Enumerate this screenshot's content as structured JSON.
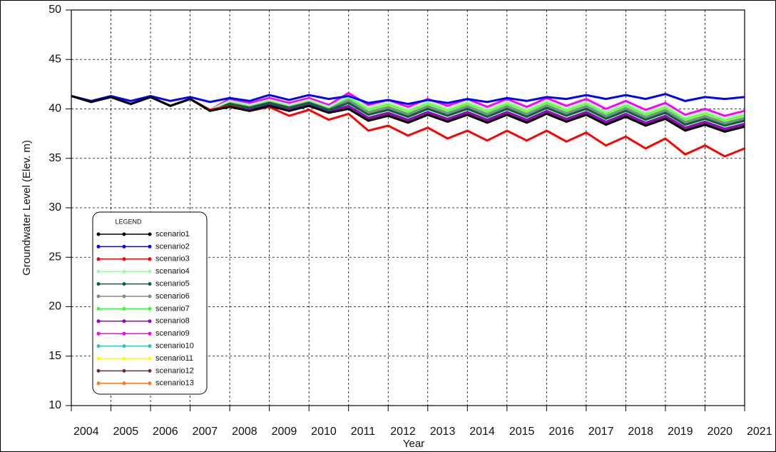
{
  "chart_data": {
    "type": "line",
    "x_label": "Year",
    "y_label": "Groundwater Level (Elev. m)",
    "legend_title": "LEGEND",
    "grid": true,
    "legend_position": "lower left",
    "xlim": [
      2004,
      2021
    ],
    "xticks": [
      2004,
      2005,
      2006,
      2007,
      2008,
      2009,
      2010,
      2011,
      2012,
      2013,
      2014,
      2015,
      2016,
      2017,
      2018,
      2019,
      2020,
      2021
    ],
    "ylim": [
      10,
      50
    ],
    "yticks": [
      10,
      15,
      20,
      25,
      30,
      35,
      40,
      45,
      50
    ],
    "x": [
      2004,
      2004.5,
      2005,
      2005.5,
      2006,
      2006.5,
      2007,
      2007.5,
      2008,
      2008.5,
      2009,
      2009.5,
      2010,
      2010.5,
      2011,
      2011.5,
      2012,
      2012.5,
      2013,
      2013.5,
      2014,
      2014.5,
      2015,
      2015.5,
      2016,
      2016.5,
      2017,
      2017.5,
      2018,
      2018.5,
      2019,
      2019.5,
      2020,
      2020.5,
      2021
    ],
    "series": [
      {
        "name": "scenario1",
        "color": "#000000",
        "values": [
          41.3,
          40.7,
          41.2,
          40.5,
          41.2,
          40.3,
          41.0,
          39.8,
          40.2,
          39.8,
          40.3,
          39.8,
          40.3,
          39.6,
          40.0,
          38.8,
          39.3,
          38.6,
          39.4,
          38.7,
          39.4,
          38.6,
          39.4,
          38.6,
          39.5,
          38.7,
          39.4,
          38.4,
          39.2,
          38.3,
          39.0,
          37.8,
          38.4,
          37.7,
          38.2
        ]
      },
      {
        "name": "scenario2",
        "color": "#0000ff",
        "values": [
          41.3,
          40.8,
          41.3,
          40.8,
          41.3,
          40.8,
          41.2,
          40.7,
          41.1,
          40.8,
          41.4,
          40.9,
          41.4,
          41.0,
          41.3,
          40.6,
          40.9,
          40.5,
          40.9,
          40.6,
          41.0,
          40.7,
          41.1,
          40.8,
          41.2,
          41.0,
          41.4,
          41.0,
          41.4,
          41.0,
          41.5,
          40.8,
          41.2,
          41.0,
          41.2
        ]
      },
      {
        "name": "scenario3",
        "color": "#ff0000",
        "values": [
          41.3,
          40.7,
          41.2,
          40.5,
          41.2,
          40.3,
          41.0,
          39.9,
          40.3,
          39.8,
          40.2,
          39.3,
          39.9,
          38.9,
          39.5,
          37.8,
          38.3,
          37.3,
          38.1,
          37.0,
          37.8,
          36.8,
          37.8,
          36.8,
          37.8,
          36.7,
          37.6,
          36.3,
          37.2,
          36.0,
          37.0,
          35.4,
          36.3,
          35.2,
          36.0
        ]
      },
      {
        "name": "scenario4",
        "color": "#99ff99",
        "values": [
          41.3,
          40.7,
          41.2,
          40.5,
          41.2,
          40.3,
          41.0,
          39.9,
          40.8,
          40.4,
          40.9,
          40.4,
          40.9,
          40.2,
          41.3,
          40.1,
          40.6,
          39.9,
          40.7,
          40.0,
          40.7,
          39.9,
          40.7,
          39.9,
          40.8,
          40.0,
          40.7,
          39.7,
          40.5,
          39.6,
          40.3,
          39.1,
          39.7,
          39.0,
          39.5
        ]
      },
      {
        "name": "scenario5",
        "color": "#006633",
        "values": [
          41.3,
          40.7,
          41.2,
          40.5,
          41.2,
          40.3,
          41.0,
          39.9,
          40.5,
          40.1,
          40.6,
          40.1,
          40.6,
          39.9,
          40.6,
          39.4,
          39.9,
          39.2,
          40.0,
          39.3,
          40.0,
          39.2,
          40.0,
          39.2,
          40.1,
          39.3,
          40.0,
          39.0,
          39.8,
          38.9,
          39.6,
          38.4,
          39.0,
          38.3,
          38.8
        ]
      },
      {
        "name": "scenario6",
        "color": "#888888",
        "values": [
          41.3,
          40.7,
          41.2,
          40.5,
          41.2,
          40.3,
          41.0,
          39.9,
          40.6,
          40.2,
          40.7,
          40.2,
          40.7,
          40.0,
          40.8,
          39.6,
          40.1,
          39.4,
          40.2,
          39.5,
          40.2,
          39.4,
          40.2,
          39.4,
          40.3,
          39.5,
          40.2,
          39.2,
          40.0,
          39.1,
          39.8,
          38.6,
          39.2,
          38.5,
          39.0
        ]
      },
      {
        "name": "scenario7",
        "color": "#33ff33",
        "values": [
          41.3,
          40.7,
          41.2,
          40.5,
          41.2,
          40.3,
          41.0,
          39.9,
          40.8,
          40.4,
          40.9,
          40.4,
          40.9,
          40.2,
          41.2,
          40.0,
          40.5,
          39.8,
          40.6,
          39.9,
          40.6,
          39.8,
          40.6,
          39.8,
          40.7,
          39.9,
          40.6,
          39.6,
          40.4,
          39.5,
          40.2,
          39.0,
          39.6,
          38.9,
          39.4
        ]
      },
      {
        "name": "scenario8",
        "color": "#9900cc",
        "values": [
          41.3,
          40.7,
          41.2,
          40.5,
          41.2,
          40.3,
          41.0,
          39.9,
          40.4,
          40.0,
          40.5,
          40.0,
          40.5,
          39.8,
          40.3,
          39.1,
          39.6,
          38.9,
          39.7,
          39.0,
          39.7,
          38.9,
          39.7,
          38.9,
          39.8,
          39.0,
          39.7,
          38.7,
          39.5,
          38.6,
          39.3,
          38.1,
          38.7,
          38.0,
          38.5
        ]
      },
      {
        "name": "scenario9",
        "color": "#ff00ff",
        "values": [
          41.3,
          40.7,
          41.2,
          40.5,
          41.2,
          40.3,
          41.0,
          39.9,
          41.0,
          40.6,
          41.1,
          40.6,
          41.1,
          40.4,
          41.6,
          40.4,
          40.9,
          40.2,
          41.0,
          40.3,
          41.0,
          40.2,
          41.0,
          40.2,
          41.1,
          40.3,
          41.0,
          40.0,
          40.8,
          39.9,
          40.6,
          39.4,
          40.0,
          39.3,
          39.8
        ]
      },
      {
        "name": "scenario10",
        "color": "#33bbbb",
        "values": [
          41.3,
          40.7,
          41.2,
          40.5,
          41.2,
          40.3,
          41.0,
          39.9,
          40.6,
          40.2,
          40.7,
          40.2,
          40.7,
          40.0,
          40.9,
          39.7,
          40.2,
          39.5,
          40.3,
          39.6,
          40.3,
          39.5,
          40.3,
          39.5,
          40.4,
          39.6,
          40.3,
          39.3,
          40.1,
          39.2,
          39.9,
          38.7,
          39.3,
          38.6,
          39.1
        ]
      },
      {
        "name": "scenario11",
        "color": "#ffff00",
        "values": [
          41.3,
          40.7,
          41.2,
          40.5,
          41.2,
          40.3,
          41.0,
          39.9,
          40.7,
          40.3,
          40.8,
          40.3,
          40.8,
          40.1,
          41.0,
          39.8,
          40.3,
          39.6,
          40.4,
          39.7,
          40.4,
          39.6,
          40.4,
          39.6,
          40.5,
          39.7,
          40.4,
          39.4,
          40.2,
          39.3,
          40.0,
          38.8,
          39.4,
          38.7,
          39.2
        ]
      },
      {
        "name": "scenario12",
        "color": "#663333",
        "values": [
          41.3,
          40.7,
          41.2,
          40.5,
          41.2,
          40.3,
          41.0,
          39.9,
          40.3,
          39.9,
          40.4,
          39.9,
          40.4,
          39.7,
          40.1,
          38.9,
          39.4,
          38.7,
          39.5,
          38.8,
          39.5,
          38.7,
          39.5,
          38.7,
          39.6,
          38.8,
          39.5,
          38.5,
          39.3,
          38.4,
          39.1,
          37.9,
          38.5,
          37.8,
          38.3
        ]
      },
      {
        "name": "scenario13",
        "color": "#ff7722",
        "values": [
          41.3,
          40.7,
          41.2,
          40.5,
          41.2,
          40.3,
          41.0,
          39.9,
          40.5,
          40.1,
          40.6,
          40.1,
          40.6,
          39.9,
          40.7,
          39.5,
          40.0,
          39.3,
          40.1,
          39.4,
          40.1,
          39.3,
          40.1,
          39.3,
          40.2,
          39.4,
          40.1,
          39.1,
          39.9,
          39.0,
          39.7,
          38.5,
          39.1,
          38.4,
          38.9
        ]
      }
    ]
  }
}
